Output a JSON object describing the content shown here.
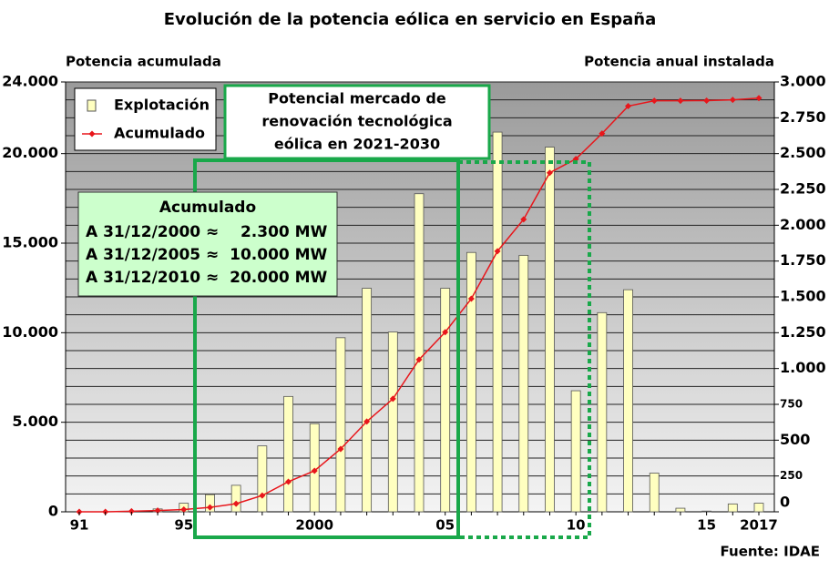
{
  "chart_data": {
    "type": "bar_line",
    "title": "Evolución de la potencia eólica en servicio en España",
    "y_label": "Potencia acumulada",
    "y2_label": "Potencia anual instalada",
    "source": "Fuente: IDAE",
    "categories": [
      "91",
      null,
      null,
      null,
      "95",
      null,
      null,
      null,
      null,
      "2000",
      null,
      null,
      null,
      null,
      "05",
      null,
      null,
      null,
      null,
      "10",
      null,
      null,
      null,
      null,
      "15",
      null,
      "2017"
    ],
    "series": [
      {
        "name": "Explotación",
        "type": "bar",
        "axis": "y2",
        "color": "#ffffc0",
        "values": [
          0,
          0,
          0,
          20,
          60,
          120,
          185,
          460,
          805,
          615,
          1215,
          1560,
          1255,
          2220,
          1560,
          1810,
          2650,
          1790,
          2545,
          845,
          1390,
          1550,
          270,
          25,
          5,
          55,
          60
        ]
      },
      {
        "name": "Acumulado",
        "type": "line",
        "color": "#e8161b",
        "values": [
          0,
          0,
          30,
          70,
          130,
          250,
          450,
          910,
          1680,
          2290,
          3510,
          5040,
          6310,
          8500,
          10030,
          11900,
          14550,
          16330,
          18930,
          19700,
          21120,
          22650,
          22950,
          22950,
          22960,
          23000,
          23100
        ]
      }
    ],
    "ylim": [
      0,
      24000
    ],
    "yticks": [
      0,
      {
        "value": 5000,
        "label": "5.000"
      },
      {
        "value": 10000,
        "label": "10.000"
      },
      {
        "value": 15000,
        "label": "15.000"
      },
      {
        "value": 20000,
        "label": "20.000"
      },
      {
        "value": 24000,
        "label": "24.000"
      }
    ],
    "ygrid": [
      1000,
      2000,
      3000,
      4000,
      5000,
      6000,
      7000,
      8000,
      9000,
      10000,
      11000,
      12000,
      13000,
      14000,
      15000,
      16000,
      17000,
      18000,
      19000,
      20000,
      21000,
      22000,
      23000,
      24000
    ],
    "y2lim": [
      0,
      3000
    ],
    "y2ticks": [
      0,
      250,
      500,
      750,
      {
        "value": 1000,
        "label": "1.000"
      },
      {
        "value": 1250,
        "label": "1.250"
      },
      {
        "value": 1500,
        "label": "1.500"
      },
      {
        "value": 1750,
        "label": "1.750"
      },
      {
        "value": 2000,
        "label": "2.000"
      },
      {
        "value": 2250,
        "label": "2.250"
      },
      {
        "value": 2500,
        "label": "2.500"
      },
      {
        "value": 2750,
        "label": "2.750"
      },
      {
        "value": 3000,
        "label": "3.000"
      }
    ],
    "legend": "top-left",
    "annotations": {
      "market_box": [
        "Potencial mercado de",
        "renovación tecnológica",
        "eólica en 2021-2030"
      ],
      "cumulative_box": {
        "title": "Acumulado",
        "lines": [
          "A 31/12/2000 ≈    2.300 MW",
          "A 31/12/2005 ≈  10.000 MW",
          "A 31/12/2010 ≈  20.000 MW"
        ]
      }
    }
  }
}
